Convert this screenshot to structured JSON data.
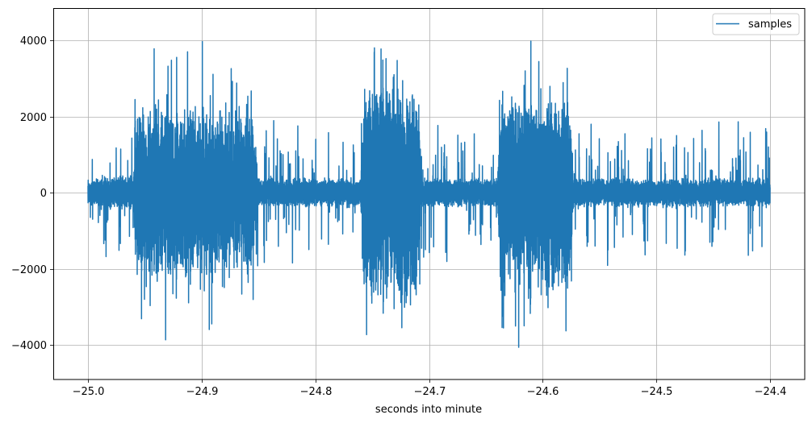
{
  "chart_data": {
    "type": "line",
    "title": "",
    "xlabel": "seconds into minute",
    "ylabel": "",
    "xlim": [
      -25.03,
      -24.38
    ],
    "ylim": [
      -4900,
      4800
    ],
    "x_ticks": [
      -25.0,
      -24.9,
      -24.8,
      -24.7,
      -24.6,
      -24.5,
      -24.4
    ],
    "x_tick_labels": [
      "−25.0",
      "−24.9",
      "−24.8",
      "−24.7",
      "−24.6",
      "−24.5",
      "−24.4"
    ],
    "y_ticks": [
      -4000,
      -2000,
      0,
      2000,
      4000
    ],
    "y_tick_labels": [
      "−4000",
      "−2000",
      "0",
      "2000",
      "4000"
    ],
    "grid": true,
    "legend": {
      "position": "upper right",
      "entries": [
        "samples"
      ]
    },
    "series": [
      {
        "name": "samples",
        "color": "#1f77b4",
        "x_range": [
          -25.0,
          -24.4
        ],
        "description": "Dense audio-like sample waveform with three high-amplitude bursts",
        "envelope": [
          {
            "x": -25.0,
            "typical": 400,
            "peak": 2200
          },
          {
            "x": -24.96,
            "typical": 500,
            "peak": 2100
          },
          {
            "x": -24.957,
            "typical": 2400,
            "peak": 4200
          },
          {
            "x": -24.9,
            "typical": 2300,
            "peak": 4400
          },
          {
            "x": -24.855,
            "typical": 2200,
            "peak": 3500
          },
          {
            "x": -24.85,
            "typical": 400,
            "peak": 2400
          },
          {
            "x": -24.76,
            "typical": 400,
            "peak": 2000
          },
          {
            "x": -24.757,
            "typical": 3000,
            "peak": 4400
          },
          {
            "x": -24.71,
            "typical": 2900,
            "peak": 4200
          },
          {
            "x": -24.707,
            "typical": 400,
            "peak": 2000
          },
          {
            "x": -24.64,
            "typical": 400,
            "peak": 2000
          },
          {
            "x": -24.637,
            "typical": 2600,
            "peak": 4400
          },
          {
            "x": -24.576,
            "typical": 2600,
            "peak": 4000
          },
          {
            "x": -24.573,
            "typical": 400,
            "peak": 2100
          },
          {
            "x": -24.4,
            "typical": 400,
            "peak": 2000
          }
        ],
        "approx_min": -4450,
        "approx_max": 4400
      }
    ]
  }
}
